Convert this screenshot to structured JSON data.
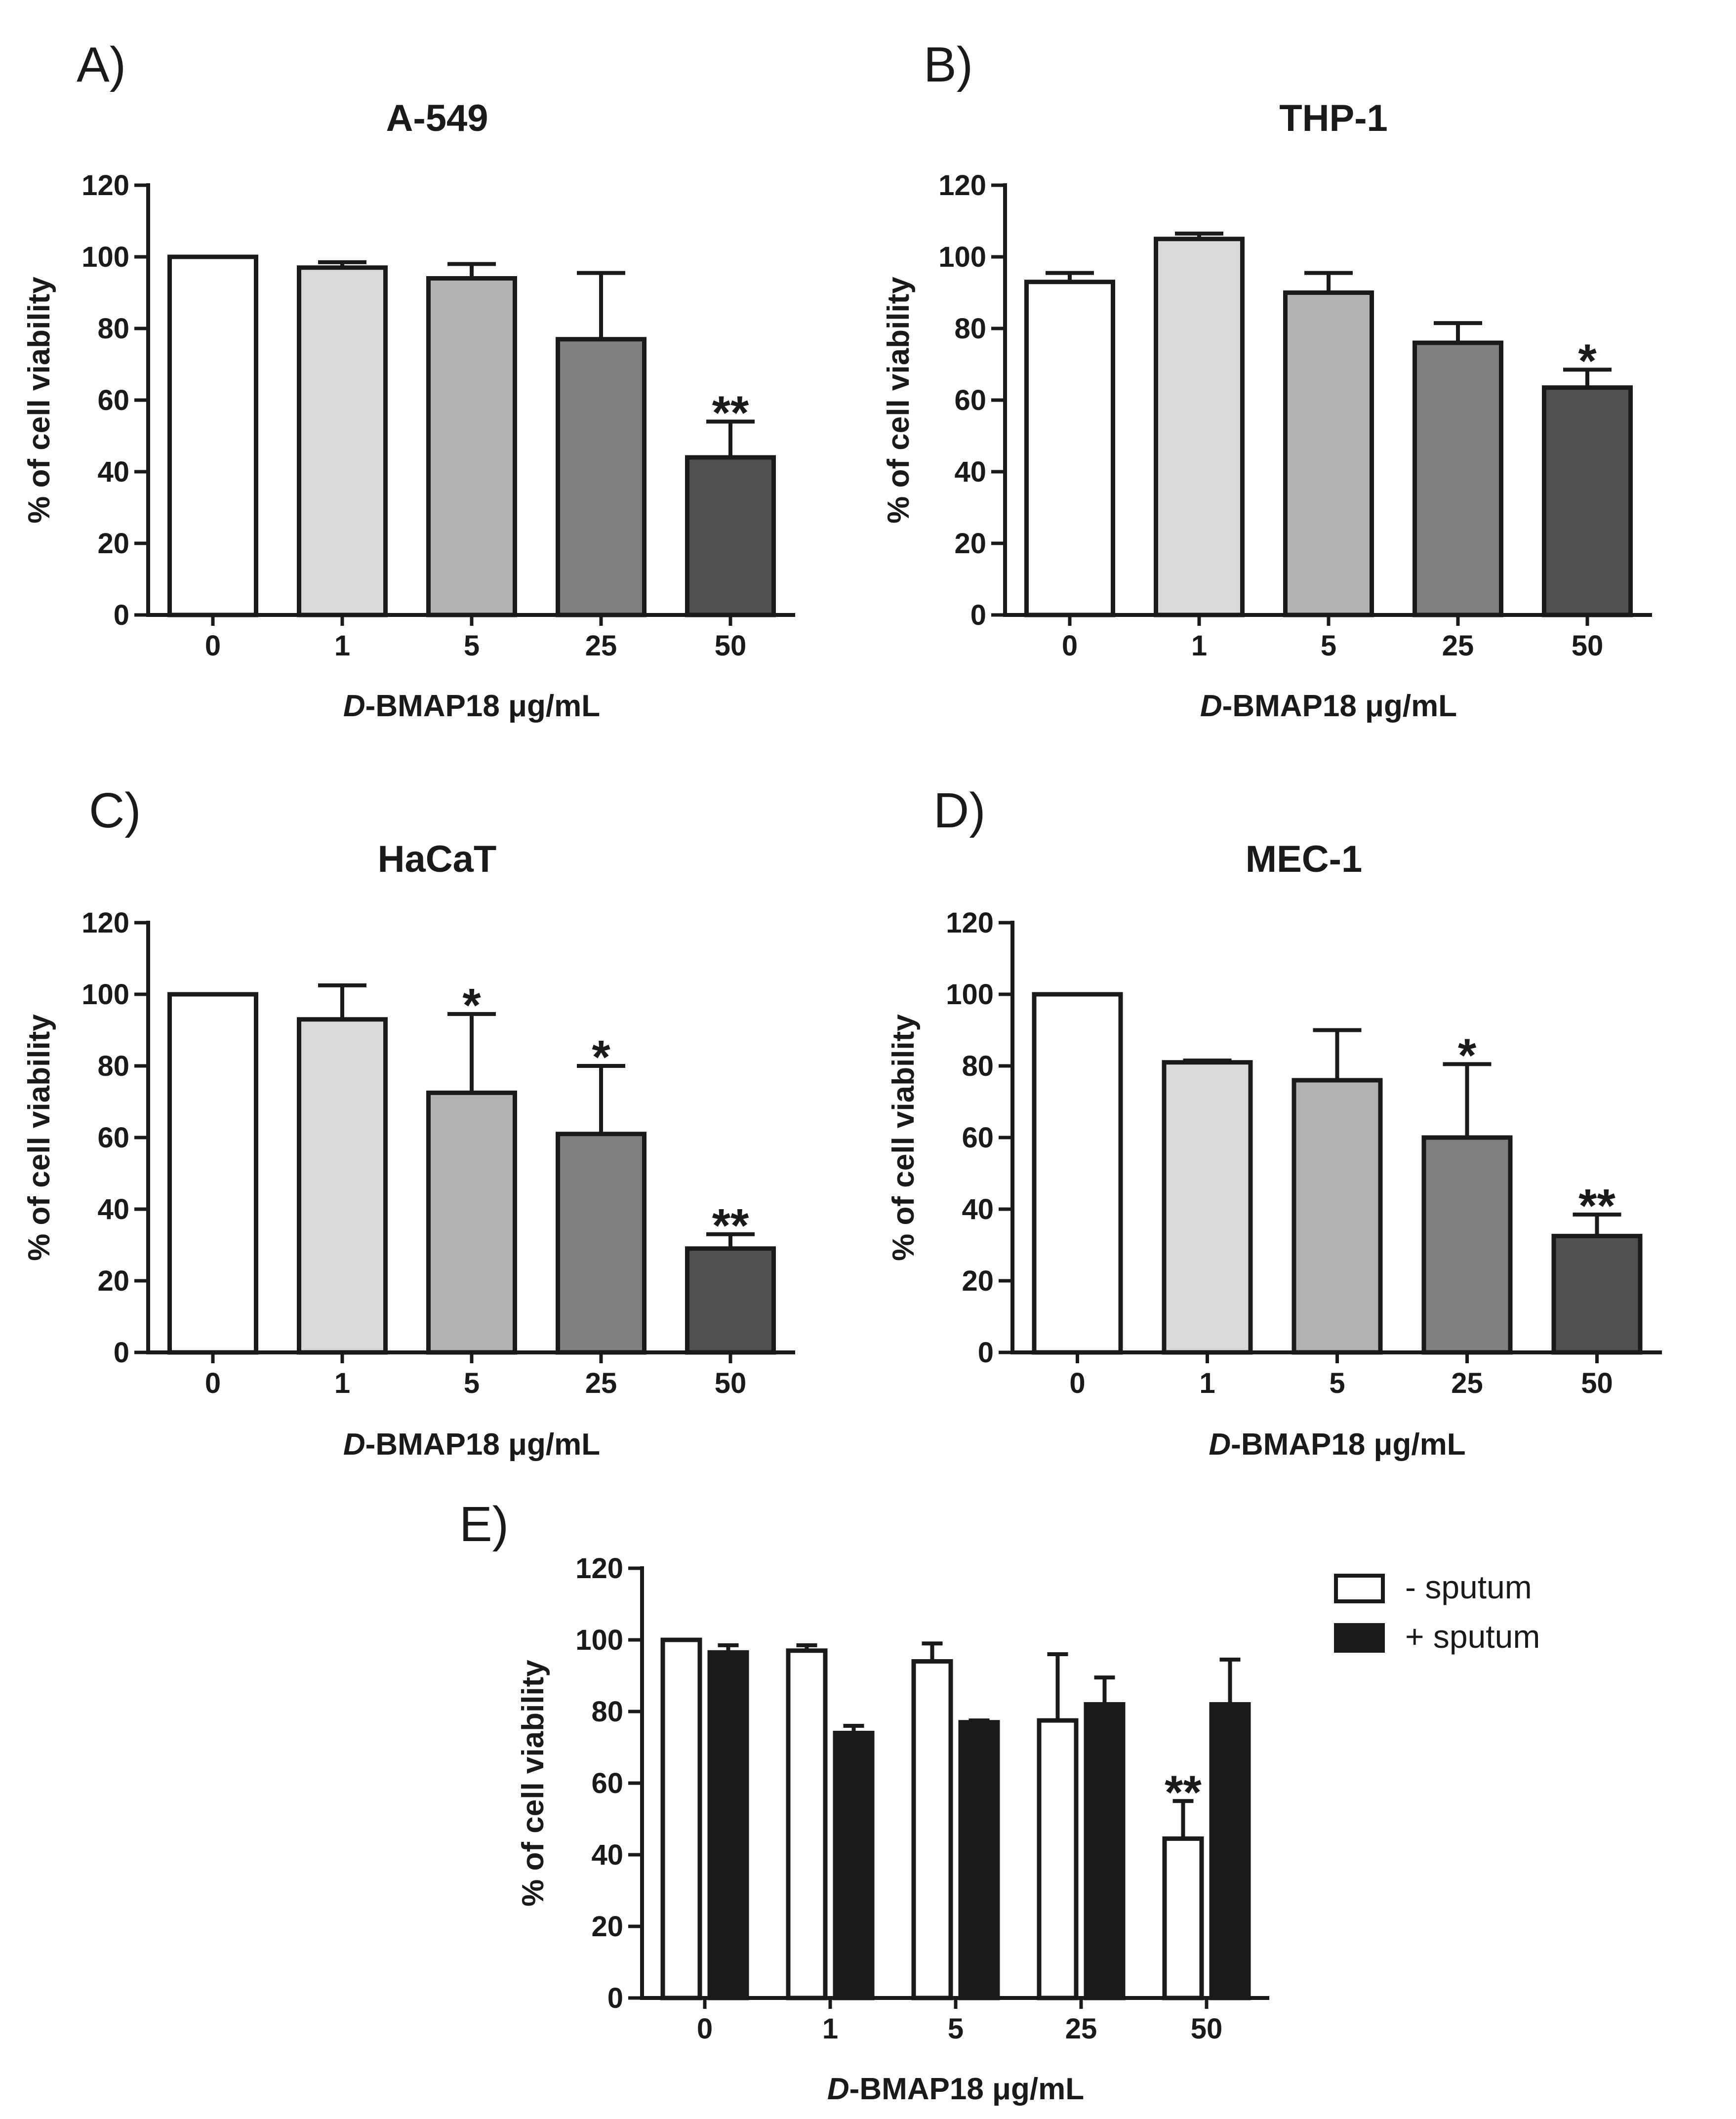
{
  "chart_data": [
    {
      "panel_id": "A",
      "type": "bar",
      "panel_label": "A)",
      "title": "A-549",
      "xlabel_italic": "D",
      "xlabel_rest": "-BMAP18 μg/mL",
      "ylabel": "% of cell viability",
      "ylim": [
        0,
        120
      ],
      "yticks": [
        "0",
        "20",
        "40",
        "60",
        "80",
        "100",
        "120"
      ],
      "categories": [
        "0",
        "1",
        "5",
        "25",
        "50"
      ],
      "values": [
        100,
        97,
        94,
        77,
        44
      ],
      "errors": [
        0,
        1.5,
        4,
        18.5,
        10
      ],
      "bar_colors": [
        "#ffffff",
        "#d9d9d9",
        "#b2b2b2",
        "#808080",
        "#505050"
      ],
      "significance": [
        "",
        "",
        "",
        "",
        "**"
      ]
    },
    {
      "panel_id": "B",
      "type": "bar",
      "panel_label": "B)",
      "title": "THP-1",
      "xlabel_italic": "D",
      "xlabel_rest": "-BMAP18 μg/mL",
      "ylabel": "% of cell viability",
      "ylim": [
        0,
        120
      ],
      "yticks": [
        "0",
        "20",
        "40",
        "60",
        "80",
        "100",
        "120"
      ],
      "categories": [
        "0",
        "1",
        "5",
        "25",
        "50"
      ],
      "values": [
        93,
        105,
        90,
        76,
        63.5
      ],
      "errors": [
        2.5,
        1.5,
        5.5,
        5.5,
        5
      ],
      "bar_colors": [
        "#ffffff",
        "#d9d9d9",
        "#b2b2b2",
        "#808080",
        "#505050"
      ],
      "significance": [
        "",
        "",
        "",
        "",
        "*"
      ]
    },
    {
      "panel_id": "C",
      "type": "bar",
      "panel_label": "C)",
      "title": "HaCaT",
      "xlabel_italic": "D",
      "xlabel_rest": "-BMAP18 μg/mL",
      "ylabel": "% of cell viability",
      "ylim": [
        0,
        120
      ],
      "yticks": [
        "0",
        "20",
        "40",
        "60",
        "80",
        "100",
        "120"
      ],
      "categories": [
        "0",
        "1",
        "5",
        "25",
        "50"
      ],
      "values": [
        100,
        93,
        72.5,
        61,
        29
      ],
      "errors": [
        0,
        9.5,
        22,
        19,
        4
      ],
      "bar_colors": [
        "#ffffff",
        "#d9d9d9",
        "#b2b2b2",
        "#808080",
        "#505050"
      ],
      "significance": [
        "",
        "",
        "*",
        "*",
        "**"
      ]
    },
    {
      "panel_id": "D",
      "type": "bar",
      "panel_label": "D)",
      "title": "MEC-1",
      "xlabel_italic": "D",
      "xlabel_rest": "-BMAP18 μg/mL",
      "ylabel": "% of cell viability",
      "ylim": [
        0,
        120
      ],
      "yticks": [
        "0",
        "20",
        "40",
        "60",
        "80",
        "100",
        "120"
      ],
      "categories": [
        "0",
        "1",
        "5",
        "25",
        "50"
      ],
      "values": [
        100,
        81,
        76,
        60,
        32.5
      ],
      "errors": [
        0,
        0.5,
        14,
        20.5,
        6
      ],
      "bar_colors": [
        "#ffffff",
        "#d9d9d9",
        "#b2b2b2",
        "#808080",
        "#505050"
      ],
      "significance": [
        "",
        "",
        "",
        "*",
        "**"
      ]
    },
    {
      "panel_id": "E",
      "type": "bar",
      "panel_label": "E)",
      "title": "",
      "xlabel_italic": "D",
      "xlabel_rest": "-BMAP18 μg/mL",
      "ylabel": "% of cell viability",
      "ylim": [
        0,
        120
      ],
      "yticks": [
        "0",
        "20",
        "40",
        "60",
        "80",
        "100",
        "120"
      ],
      "categories": [
        "0",
        "1",
        "5",
        "25",
        "50"
      ],
      "series": [
        {
          "name": "- sputum",
          "color": "#ffffff",
          "values": [
            100,
            97,
            94,
            77.5,
            44.5
          ],
          "errors": [
            0,
            1.5,
            5,
            18.5,
            10.5
          ],
          "significance": [
            "",
            "",
            "",
            "",
            "**"
          ]
        },
        {
          "name": "+ sputum",
          "color": "#1a1a1a",
          "values": [
            96.5,
            74,
            77,
            82,
            82
          ],
          "errors": [
            2,
            2,
            0.5,
            7.5,
            12.5
          ],
          "significance": [
            "",
            "",
            "",
            "",
            ""
          ]
        }
      ]
    }
  ]
}
